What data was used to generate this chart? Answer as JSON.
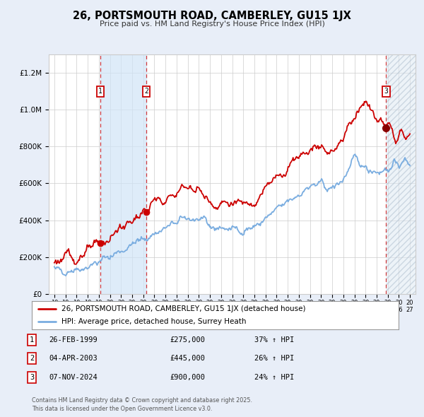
{
  "title": "26, PORTSMOUTH ROAD, CAMBERLEY, GU15 1JX",
  "subtitle": "Price paid vs. HM Land Registry's House Price Index (HPI)",
  "legend_line1": "26, PORTSMOUTH ROAD, CAMBERLEY, GU15 1JX (detached house)",
  "legend_line2": "HPI: Average price, detached house, Surrey Heath",
  "table_rows": [
    {
      "num": "1",
      "date": "26-FEB-1999",
      "price": "£275,000",
      "change": "37% ↑ HPI"
    },
    {
      "num": "2",
      "date": "04-APR-2003",
      "price": "£445,000",
      "change": "26% ↑ HPI"
    },
    {
      "num": "3",
      "date": "07-NOV-2024",
      "price": "£900,000",
      "change": "24% ↑ HPI"
    }
  ],
  "footer": "Contains HM Land Registry data © Crown copyright and database right 2025.\nThis data is licensed under the Open Government Licence v3.0.",
  "red_color": "#cc0000",
  "blue_color": "#7aade0",
  "bg_color": "#e8eef8",
  "plot_bg": "#ffffff",
  "grid_color": "#cccccc",
  "ylim": [
    0,
    1300000
  ],
  "yticks": [
    0,
    200000,
    400000,
    600000,
    800000,
    1000000,
    1200000
  ],
  "xlim_start": 1994.5,
  "xlim_end": 2027.5,
  "transaction1_x": 1999.15,
  "transaction2_x": 2003.27,
  "transaction3_x": 2024.85,
  "transaction1_y": 275000,
  "transaction2_y": 445000,
  "transaction3_y": 900000,
  "hpi_waypoints_yr": [
    1995,
    1996,
    1997,
    1998,
    1999,
    2000,
    2001,
    2002,
    2003,
    2004,
    2005,
    2006,
    2007,
    2008,
    2009,
    2010,
    2011,
    2012,
    2013,
    2014,
    2015,
    2016,
    2017,
    2018,
    2019,
    2020,
    2021,
    2022,
    2023,
    2024,
    2024.85,
    2025.5,
    2026,
    2027
  ],
  "hpi_waypoints_val": [
    125000,
    130000,
    138000,
    152000,
    172000,
    205000,
    235000,
    268000,
    295000,
    328000,
    355000,
    385000,
    415000,
    400000,
    365000,
    358000,
    352000,
    348000,
    362000,
    405000,
    452000,
    498000,
    545000,
    580000,
    592000,
    568000,
    625000,
    725000,
    690000,
    668000,
    672000,
    695000,
    710000,
    720000
  ],
  "price_waypoints_yr": [
    1995,
    1996,
    1997,
    1998,
    1999,
    2000,
    2001,
    2002,
    2003,
    2004,
    2005,
    2006,
    2007,
    2008,
    2009,
    2010,
    2011,
    2012,
    2013,
    2014,
    2015,
    2016,
    2017,
    2018,
    2019,
    2020,
    2021,
    2022,
    2023,
    2024,
    2024.85,
    2025.5,
    2026,
    2027
  ],
  "price_waypoints_val": [
    185000,
    192000,
    205000,
    228000,
    262000,
    310000,
    358000,
    400000,
    438000,
    495000,
    510000,
    545000,
    600000,
    562000,
    500000,
    492000,
    496000,
    482000,
    520000,
    572000,
    625000,
    688000,
    758000,
    795000,
    808000,
    768000,
    852000,
    980000,
    1030000,
    955000,
    900000,
    870000,
    855000,
    860000
  ],
  "noise_seed_hpi": 42,
  "noise_seed_price": 123,
  "noise_scale_hpi": 12000,
  "noise_scale_price": 16000,
  "n_points": 500
}
